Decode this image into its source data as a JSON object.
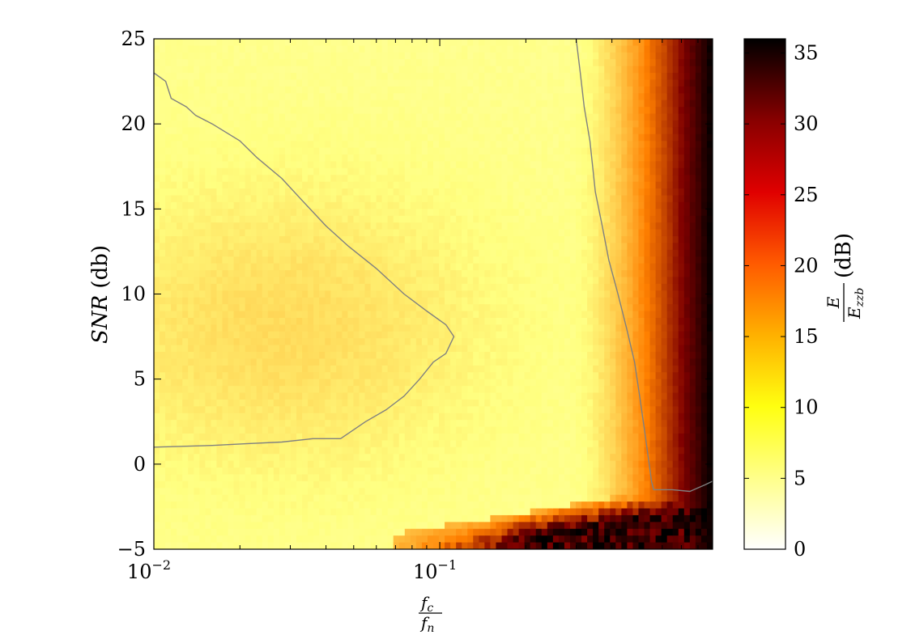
{
  "chart_data": {
    "type": "heatmap",
    "xlabel": {
      "numerator": "f",
      "numerator_sub": "c",
      "denominator": "f",
      "denominator_sub": "n"
    },
    "ylabel": {
      "italic": "SNR",
      "rest": " (db)"
    },
    "x_scale": "log",
    "xlim": [
      0.01,
      0.9
    ],
    "ylim": [
      -5,
      25
    ],
    "x_ticks": [
      {
        "value": 0.01,
        "base": "10",
        "exp": "−2"
      },
      {
        "value": 0.1,
        "base": "10",
        "exp": "−1"
      }
    ],
    "y_ticks": [
      {
        "value": -5,
        "label": "−5"
      },
      {
        "value": 0,
        "label": "0"
      },
      {
        "value": 5,
        "label": "5"
      },
      {
        "value": 10,
        "label": "10"
      },
      {
        "value": 15,
        "label": "15"
      },
      {
        "value": 20,
        "label": "20"
      },
      {
        "value": 25,
        "label": "25"
      }
    ],
    "colorbar": {
      "colormap": "afmhot_r",
      "range": [
        0,
        36
      ],
      "ticks": [
        0,
        5,
        10,
        15,
        20,
        25,
        30,
        35
      ],
      "label": {
        "numerator": "E",
        "denominator": "E",
        "denominator_sub": "zzb",
        "unit": " (dB)"
      }
    },
    "contour_level_db": 8,
    "regions": [
      {
        "description": "baseline level across most of the plane",
        "value_db": 8
      },
      {
        "description": "central lobe around SNR 0–20 dB at low fc/fn",
        "value_db": 11.5
      },
      {
        "description": "rising band at high fc/fn (fc/fn > 0.5)",
        "value_db_max": 36
      },
      {
        "description": "low-SNR threshold region at SNR < -2 dB",
        "value_db_max": 36
      }
    ],
    "contour_lines": [
      {
        "name": "left-lobe-boundary",
        "points": [
          [
            0.01,
            23
          ],
          [
            0.011,
            22.5
          ],
          [
            0.0115,
            21.5
          ],
          [
            0.013,
            21
          ],
          [
            0.014,
            20.5
          ],
          [
            0.016,
            20
          ],
          [
            0.02,
            19
          ],
          [
            0.023,
            18
          ],
          [
            0.028,
            16.8
          ],
          [
            0.033,
            15.5
          ],
          [
            0.04,
            14
          ],
          [
            0.048,
            12.8
          ],
          [
            0.06,
            11.5
          ],
          [
            0.075,
            10
          ],
          [
            0.09,
            9
          ],
          [
            0.105,
            8.2
          ],
          [
            0.112,
            7.5
          ],
          [
            0.105,
            6.5
          ],
          [
            0.095,
            6
          ],
          [
            0.085,
            5
          ],
          [
            0.075,
            4
          ],
          [
            0.065,
            3.2
          ],
          [
            0.055,
            2.5
          ],
          [
            0.045,
            1.5
          ],
          [
            0.036,
            1.5
          ],
          [
            0.028,
            1.3
          ],
          [
            0.021,
            1.2
          ],
          [
            0.016,
            1.1
          ],
          [
            0.01,
            1
          ]
        ]
      },
      {
        "name": "right-band-boundary",
        "points": [
          [
            0.3,
            25
          ],
          [
            0.31,
            23
          ],
          [
            0.32,
            21
          ],
          [
            0.335,
            19
          ],
          [
            0.35,
            16
          ],
          [
            0.37,
            14
          ],
          [
            0.39,
            12
          ],
          [
            0.42,
            10
          ],
          [
            0.45,
            8
          ],
          [
            0.48,
            6
          ],
          [
            0.5,
            4
          ],
          [
            0.52,
            2
          ],
          [
            0.54,
            0
          ],
          [
            0.55,
            -1
          ],
          [
            0.56,
            -1.5
          ],
          [
            0.65,
            -1.5
          ],
          [
            0.75,
            -1.6
          ],
          [
            0.85,
            -1.2
          ],
          [
            0.9,
            -1
          ]
        ]
      }
    ]
  }
}
